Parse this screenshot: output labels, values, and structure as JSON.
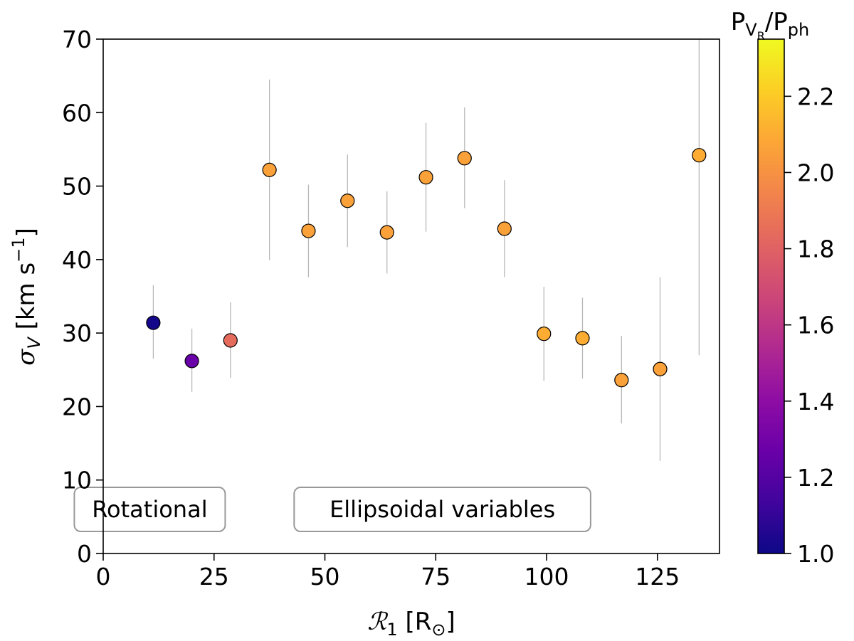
{
  "chart_data": {
    "type": "scatter",
    "xlabel": {
      "symbol": "ℛ",
      "sub": "1",
      "rest": " [R",
      "sun": "⊙",
      "close": "]"
    },
    "ylabel": {
      "symbol": "σ",
      "sub": "V",
      "rest": " [km s",
      "sup": "−1",
      "close": "]"
    },
    "xlim": [
      0,
      139
    ],
    "ylim": [
      0,
      70
    ],
    "xticks": [
      0,
      25,
      50,
      75,
      100,
      125
    ],
    "yticks": [
      0,
      10,
      20,
      30,
      40,
      50,
      60,
      70
    ],
    "grid": false,
    "colorbar": {
      "label": {
        "main": "P",
        "sub": "V",
        "subsub": "R",
        "slash": "/P",
        "sub2": "ph"
      },
      "range": [
        1.0,
        2.35
      ],
      "ticks": [
        "1.0",
        "1.2",
        "1.4",
        "1.6",
        "1.8",
        "2.0",
        "2.2"
      ],
      "colormap": "plasma"
    },
    "points": [
      {
        "x": 11.3,
        "y": 31.4,
        "err_low": 26.5,
        "err_high": 36.5,
        "c": 1.02
      },
      {
        "x": 20.0,
        "y": 26.2,
        "err_low": 22.0,
        "err_high": 30.6,
        "c": 1.27
      },
      {
        "x": 28.7,
        "y": 29.0,
        "err_low": 23.9,
        "err_high": 34.2,
        "c": 1.84
      },
      {
        "x": 37.5,
        "y": 52.2,
        "err_low": 39.9,
        "err_high": 64.5,
        "c": 2.06
      },
      {
        "x": 46.3,
        "y": 43.9,
        "err_low": 37.6,
        "err_high": 50.2,
        "c": 2.06
      },
      {
        "x": 55.1,
        "y": 48.0,
        "err_low": 41.7,
        "err_high": 54.3,
        "c": 2.06
      },
      {
        "x": 64.0,
        "y": 43.7,
        "err_low": 38.1,
        "err_high": 49.3,
        "c": 2.06
      },
      {
        "x": 72.8,
        "y": 51.2,
        "err_low": 43.8,
        "err_high": 58.6,
        "c": 2.06
      },
      {
        "x": 81.5,
        "y": 53.8,
        "err_low": 47.0,
        "err_high": 60.7,
        "c": 2.06
      },
      {
        "x": 90.5,
        "y": 44.2,
        "err_low": 37.6,
        "err_high": 50.8,
        "c": 2.06
      },
      {
        "x": 99.4,
        "y": 29.9,
        "err_low": 23.5,
        "err_high": 36.3,
        "c": 2.1
      },
      {
        "x": 108.1,
        "y": 29.3,
        "err_low": 23.8,
        "err_high": 34.8,
        "c": 2.1
      },
      {
        "x": 116.9,
        "y": 23.6,
        "err_low": 17.7,
        "err_high": 29.6,
        "c": 2.06
      },
      {
        "x": 125.6,
        "y": 25.1,
        "err_low": 12.6,
        "err_high": 37.6,
        "c": 2.06
      },
      {
        "x": 134.4,
        "y": 54.2,
        "err_low": 27.0,
        "err_high": 70.0,
        "c": 2.1
      }
    ],
    "annotations": [
      {
        "text": "Rotational",
        "x": 10.5,
        "y": 6.0
      },
      {
        "text": "Ellipsoidal variables",
        "x": 76.5,
        "y": 6.0
      }
    ]
  }
}
